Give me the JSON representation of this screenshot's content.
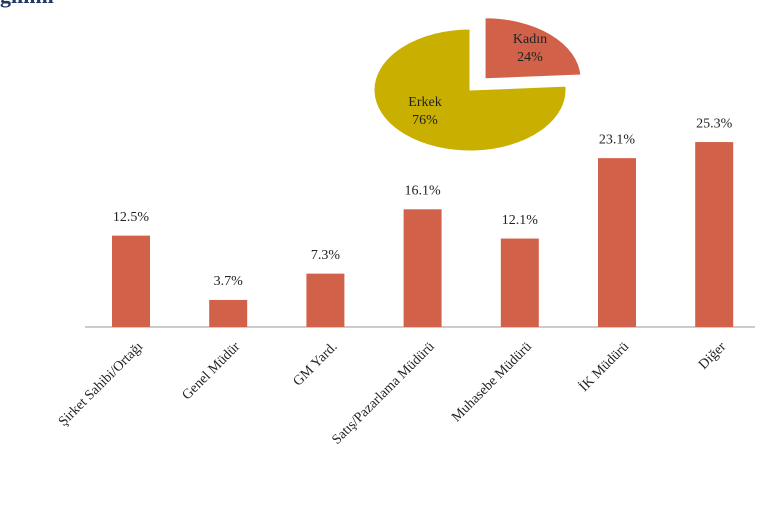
{
  "chart_data": [
    {
      "type": "bar",
      "title": "ğılımı",
      "categories": [
        "Şirket Sahibi/Ortağı",
        "Genel Müdür",
        "GM Yard.",
        "Satış/Pazarlama Müdürü",
        "Muhasebe Müdürü",
        "İK Müdürü",
        "Diğer"
      ],
      "values": [
        12.5,
        3.7,
        7.3,
        16.1,
        12.1,
        23.1,
        25.3
      ],
      "value_labels": [
        "12.5%",
        "3.7%",
        "7.3%",
        "16.1%",
        "12.1%",
        "23.1%",
        "25.3%"
      ],
      "color": "#d2614a"
    },
    {
      "type": "pie",
      "categories": [
        "Erkek",
        "Kadın"
      ],
      "values": [
        76,
        24
      ],
      "value_labels": [
        "76%",
        "24%"
      ],
      "colors": [
        "#c8af00",
        "#d2614a"
      ]
    }
  ]
}
